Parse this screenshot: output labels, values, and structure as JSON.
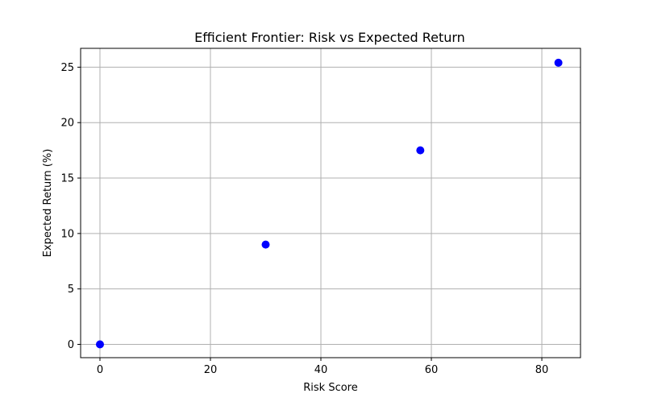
{
  "chart_data": {
    "type": "scatter",
    "title": "Efficient Frontier: Risk vs Expected Return",
    "xlabel": "Risk Score",
    "ylabel": "Expected Return (%)",
    "xlim": [
      -3.5,
      87.0
    ],
    "ylim": [
      -1.2,
      26.7
    ],
    "xticks": [
      0,
      20,
      40,
      60,
      80
    ],
    "yticks": [
      0,
      5,
      10,
      15,
      20,
      25
    ],
    "grid": true,
    "series": [
      {
        "color": "#0000ff",
        "points": [
          {
            "x": 0,
            "y": 0
          },
          {
            "x": 30,
            "y": 9
          },
          {
            "x": 58,
            "y": 17.5
          },
          {
            "x": 83,
            "y": 25.4
          }
        ]
      }
    ]
  }
}
